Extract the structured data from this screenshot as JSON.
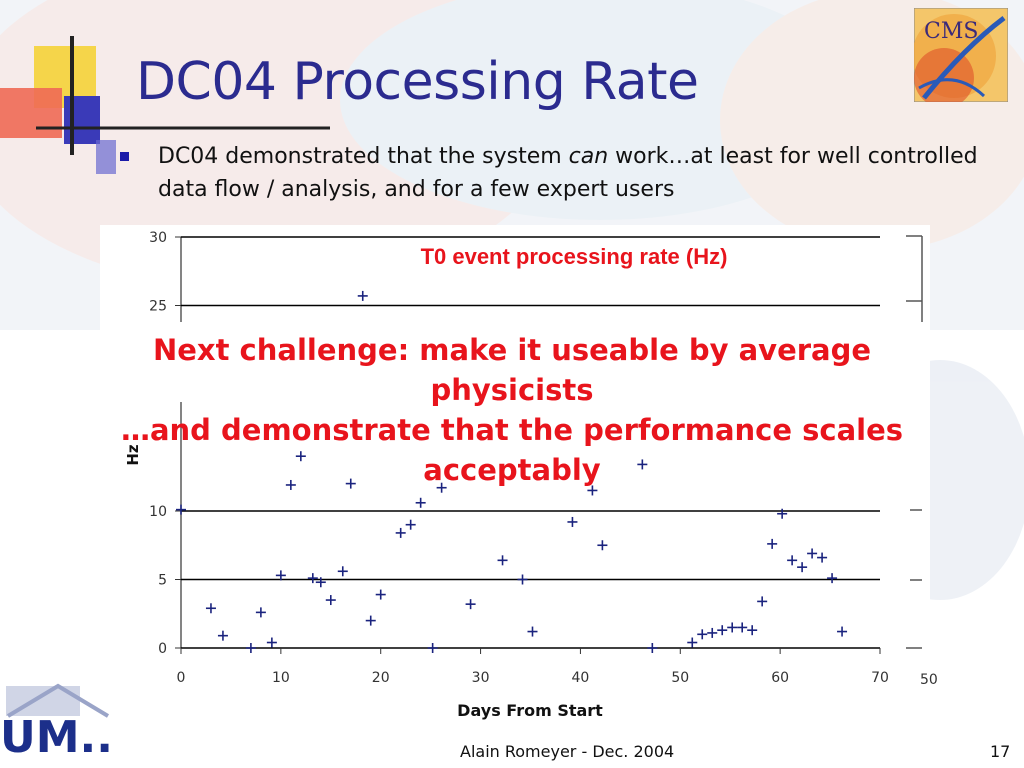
{
  "slide": {
    "title": "DC04 Processing Rate",
    "bullet_part1": "DC04 demonstrated that the system ",
    "bullet_italic": "can",
    "bullet_part2": " work…at least for well controlled data flow / analysis, and for a few expert users",
    "overlay_line1": "Next challenge: make it useable by average",
    "overlay_line2": "physicists",
    "overlay_line3": "…and demonstrate that the performance scales",
    "overlay_line4": "acceptably",
    "footer_author": "Alain Romeyer - Dec. 2004",
    "page_number": "17",
    "logo_cms_text": "CMS",
    "logo_um_text": "UM..",
    "accent_color": "#e8141c",
    "title_color": "#2b2b8f",
    "series_color": "#1a237e"
  },
  "chart_data": {
    "type": "scatter",
    "title": "T0 event processing rate (Hz)",
    "xlabel": "Days From Start",
    "ylabel": "Hz",
    "xlim": [
      0,
      70
    ],
    "ylim": [
      0,
      30
    ],
    "x_ticks": [
      "0",
      "10",
      "20",
      "30",
      "40",
      "50",
      "60",
      "70"
    ],
    "y_ticks": [
      "0",
      "5",
      "10",
      "25",
      "30"
    ],
    "stray_tick_label": "50",
    "grid": "horizontal",
    "marker": "plus",
    "series": [
      {
        "points": [
          [
            0,
            10.1
          ],
          [
            3,
            2.9
          ],
          [
            4.2,
            0.9
          ],
          [
            7,
            0.0
          ],
          [
            8,
            2.6
          ],
          [
            9.1,
            0.4
          ],
          [
            10,
            5.3
          ],
          [
            11,
            11.9
          ],
          [
            12,
            14.0
          ],
          [
            13.2,
            5.1
          ],
          [
            14,
            4.8
          ],
          [
            15,
            3.5
          ],
          [
            16.2,
            5.6
          ],
          [
            17,
            12.0
          ],
          [
            18.2,
            25.7
          ],
          [
            19,
            2.0
          ],
          [
            20,
            3.9
          ],
          [
            22,
            8.4
          ],
          [
            23,
            9.0
          ],
          [
            24,
            10.6
          ],
          [
            25.2,
            0.0
          ],
          [
            26.1,
            11.7
          ],
          [
            29,
            3.2
          ],
          [
            32.2,
            6.4
          ],
          [
            34.2,
            5.0
          ],
          [
            35.2,
            1.2
          ],
          [
            39.2,
            9.2
          ],
          [
            41.2,
            11.5
          ],
          [
            42.2,
            7.5
          ],
          [
            46.2,
            13.4
          ],
          [
            47.2,
            0.0
          ],
          [
            51.2,
            0.4
          ],
          [
            52.2,
            1.0
          ],
          [
            53.2,
            1.1
          ],
          [
            54.2,
            1.3
          ],
          [
            55.2,
            1.5
          ],
          [
            56.2,
            1.5
          ],
          [
            57.2,
            1.3
          ],
          [
            58.2,
            3.4
          ],
          [
            59.2,
            7.6
          ],
          [
            60.2,
            9.8
          ],
          [
            61.2,
            6.4
          ],
          [
            62.2,
            5.9
          ],
          [
            63.2,
            6.9
          ],
          [
            64.2,
            6.6
          ],
          [
            65.2,
            5.1
          ],
          [
            66.2,
            1.2
          ]
        ]
      }
    ]
  }
}
